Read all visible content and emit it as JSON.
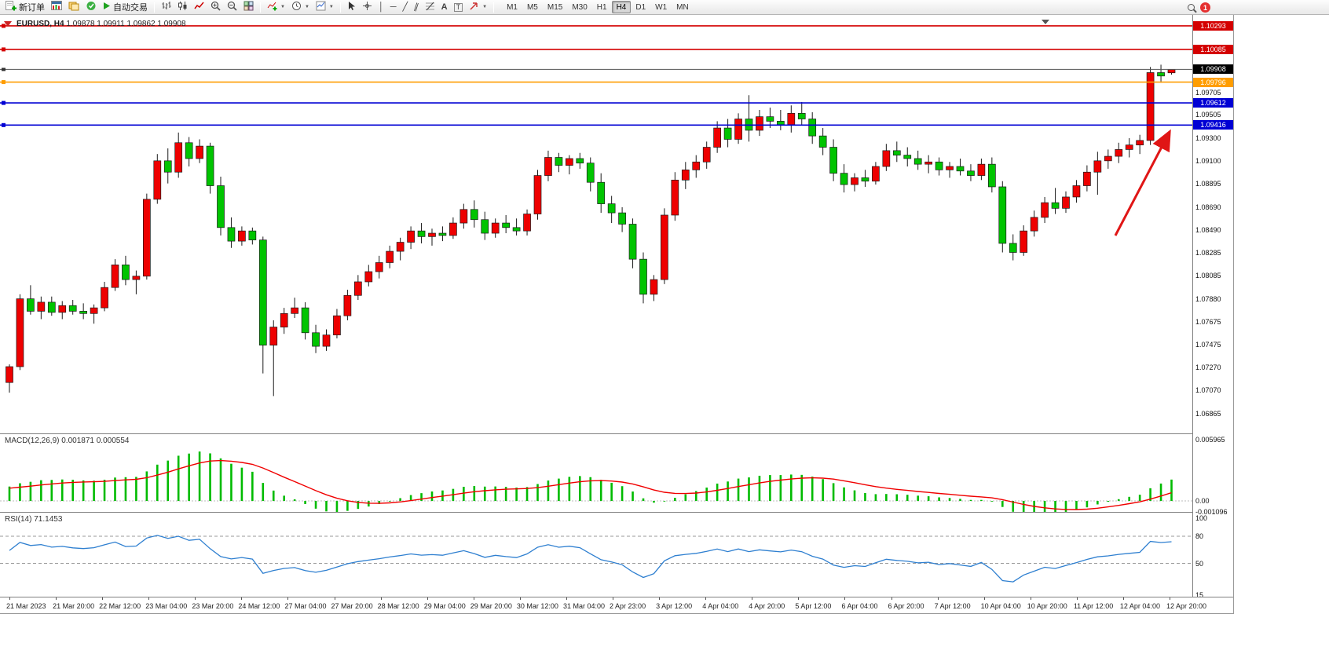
{
  "toolbar": {
    "new_order": "新订单",
    "autotrading": "自动交易",
    "timeframes": [
      "M1",
      "M5",
      "M15",
      "M30",
      "H1",
      "H4",
      "D1",
      "W1",
      "MN"
    ],
    "active_timeframe": "H4",
    "notification_count": "1",
    "glyphs": {
      "caret": "▼",
      "cursor": "↖",
      "vline": "│",
      "hline": "─",
      "trendline": "╱",
      "channel": "∥",
      "text_tool": "A",
      "label_tool": "T"
    },
    "icons": [
      "new-order",
      "new-chart",
      "profiles",
      "notifications",
      "autotrading-play",
      "bar-chart",
      "candlestick-chart",
      "line-chart",
      "zoom-in",
      "zoom-out",
      "tile-windows",
      "indicators",
      "periods",
      "templates",
      "cursor",
      "crosshair",
      "vertical-line",
      "horizontal-line",
      "trendline",
      "equidistant-channel",
      "fibonacci",
      "text",
      "text-label",
      "arrows",
      "search",
      "notification-badge"
    ]
  },
  "chart": {
    "title": "EURUSD, H4",
    "ohlc_text": "1.09878 1.09911 1.09862 1.09908"
  },
  "chart_data": {
    "type": "candlestick",
    "symbol": "EURUSD",
    "timeframe": "H4",
    "up_color": "#ee0000",
    "down_color": "#00c400",
    "y_range": {
      "top": 1.1039,
      "bottom": 1.0669
    },
    "y_axis_ticks": [
      "1.09705",
      "1.09505",
      "1.09300",
      "1.09100",
      "1.08895",
      "1.08690",
      "1.08490",
      "1.08285",
      "1.08085",
      "1.07880",
      "1.07675",
      "1.07475",
      "1.07270",
      "1.07070",
      "1.06865"
    ],
    "current_price": "1.09908",
    "levels": [
      {
        "price": "1.10293",
        "color": "#d40000"
      },
      {
        "price": "1.10085",
        "color": "#d40000"
      },
      {
        "price": "1.09796",
        "color": "#ff9d00"
      },
      {
        "price": "1.09612",
        "color": "#0000d4"
      },
      {
        "price": "1.09416",
        "color": "#0000d4"
      }
    ],
    "x_labels": [
      "21 Mar 2023",
      "21 Mar 20:00",
      "22 Mar 12:00",
      "23 Mar 04:00",
      "23 Mar 20:00",
      "24 Mar 12:00",
      "27 Mar 04:00",
      "27 Mar 20:00",
      "28 Mar 12:00",
      "29 Mar 04:00",
      "29 Mar 20:00",
      "30 Mar 12:00",
      "31 Mar 04:00",
      "2 Apr 23:00",
      "3 Apr 12:00",
      "4 Apr 04:00",
      "4 Apr 20:00",
      "5 Apr 12:00",
      "6 Apr 04:00",
      "6 Apr 20:00",
      "7 Apr 12:00",
      "10 Apr 04:00",
      "10 Apr 20:00",
      "11 Apr 12:00",
      "12 Apr 04:00",
      "12 Apr 20:00"
    ],
    "candles": [
      [
        1.0714,
        1.073,
        1.0705,
        1.0728
      ],
      [
        1.0728,
        1.0792,
        1.0725,
        1.0788
      ],
      [
        1.0788,
        1.08,
        1.0774,
        1.0777
      ],
      [
        1.0777,
        1.079,
        1.077,
        1.0785
      ],
      [
        1.0785,
        1.079,
        1.0773,
        1.0776
      ],
      [
        1.0776,
        1.0786,
        1.077,
        1.0782
      ],
      [
        1.0782,
        1.0787,
        1.0774,
        1.0777
      ],
      [
        1.0777,
        1.0784,
        1.077,
        1.0775
      ],
      [
        1.0775,
        1.0783,
        1.0766,
        1.078
      ],
      [
        1.078,
        1.0803,
        1.0777,
        1.0798
      ],
      [
        1.0798,
        1.0823,
        1.0795,
        1.0818
      ],
      [
        1.0818,
        1.0826,
        1.08,
        1.0805
      ],
      [
        1.0805,
        1.0813,
        1.0792,
        1.0808
      ],
      [
        1.0808,
        1.0881,
        1.0805,
        1.0876
      ],
      [
        1.0876,
        1.0916,
        1.0872,
        1.091
      ],
      [
        1.091,
        1.0921,
        1.089,
        1.09
      ],
      [
        1.09,
        1.0935,
        1.0895,
        1.0926
      ],
      [
        1.0926,
        1.0931,
        1.0905,
        1.0912
      ],
      [
        1.0912,
        1.0929,
        1.0908,
        1.0923
      ],
      [
        1.0923,
        1.0926,
        1.0881,
        1.0888
      ],
      [
        1.0888,
        1.0896,
        1.0844,
        1.0851
      ],
      [
        1.0851,
        1.086,
        1.0833,
        1.0839
      ],
      [
        1.0839,
        1.0852,
        1.0835,
        1.0848
      ],
      [
        1.0848,
        1.0851,
        1.0836,
        1.084
      ],
      [
        1.084,
        1.0843,
        1.0722,
        1.0747
      ],
      [
        1.0747,
        1.0769,
        1.0702,
        1.0763
      ],
      [
        1.0763,
        1.078,
        1.0757,
        1.0775
      ],
      [
        1.0775,
        1.0789,
        1.0771,
        1.078
      ],
      [
        1.078,
        1.0785,
        1.0752,
        1.0758
      ],
      [
        1.0758,
        1.0765,
        1.074,
        1.0746
      ],
      [
        1.0746,
        1.0761,
        1.0742,
        1.0756
      ],
      [
        1.0756,
        1.0779,
        1.0753,
        1.0773
      ],
      [
        1.0773,
        1.0796,
        1.0769,
        1.0791
      ],
      [
        1.0791,
        1.0809,
        1.0787,
        1.0803
      ],
      [
        1.0803,
        1.0818,
        1.0799,
        1.0812
      ],
      [
        1.0812,
        1.0826,
        1.0806,
        1.082
      ],
      [
        1.082,
        1.0835,
        1.0815,
        1.083
      ],
      [
        1.083,
        1.0842,
        1.0822,
        1.0838
      ],
      [
        1.0838,
        1.0852,
        1.0832,
        1.0848
      ],
      [
        1.0848,
        1.0855,
        1.0837,
        1.0843
      ],
      [
        1.0843,
        1.085,
        1.0835,
        1.0846
      ],
      [
        1.0846,
        1.0852,
        1.0839,
        1.0844
      ],
      [
        1.0844,
        1.086,
        1.0841,
        1.0855
      ],
      [
        1.0855,
        1.0872,
        1.085,
        1.0867
      ],
      [
        1.0867,
        1.0875,
        1.0851,
        1.0858
      ],
      [
        1.0858,
        1.0865,
        1.084,
        1.0846
      ],
      [
        1.0846,
        1.0859,
        1.0842,
        1.0855
      ],
      [
        1.0855,
        1.0862,
        1.0846,
        1.0851
      ],
      [
        1.0851,
        1.0859,
        1.0844,
        1.0848
      ],
      [
        1.0848,
        1.0867,
        1.0844,
        1.0863
      ],
      [
        1.0863,
        1.0902,
        1.0858,
        1.0897
      ],
      [
        1.0897,
        1.0919,
        1.0892,
        1.0913
      ],
      [
        1.0913,
        1.0917,
        1.09,
        1.0906
      ],
      [
        1.0906,
        1.0915,
        1.0898,
        1.0912
      ],
      [
        1.0912,
        1.0917,
        1.0903,
        1.0908
      ],
      [
        1.0908,
        1.0913,
        1.0883,
        1.0891
      ],
      [
        1.0891,
        1.0899,
        1.0864,
        1.0872
      ],
      [
        1.0872,
        1.0879,
        1.0855,
        1.0864
      ],
      [
        1.0864,
        1.0869,
        1.0847,
        1.0854
      ],
      [
        1.0854,
        1.0859,
        1.0815,
        1.0823
      ],
      [
        1.0823,
        1.0829,
        1.0784,
        1.0792
      ],
      [
        1.0792,
        1.0809,
        1.0786,
        1.0805
      ],
      [
        1.0805,
        1.0868,
        1.0801,
        1.0862
      ],
      [
        1.0862,
        1.09,
        1.0857,
        1.0893
      ],
      [
        1.0893,
        1.0909,
        1.0885,
        1.0902
      ],
      [
        1.0902,
        1.0915,
        1.0895,
        1.0909
      ],
      [
        1.0909,
        1.0927,
        1.0903,
        1.0922
      ],
      [
        1.0922,
        1.0945,
        1.0917,
        1.0939
      ],
      [
        1.0939,
        1.0947,
        1.0922,
        1.0929
      ],
      [
        1.0929,
        1.0952,
        1.0925,
        1.0947
      ],
      [
        1.0947,
        1.0968,
        1.0927,
        1.0937
      ],
      [
        1.0937,
        1.0955,
        1.0932,
        1.0949
      ],
      [
        1.0949,
        1.0957,
        1.0939,
        1.0945
      ],
      [
        1.0945,
        1.0955,
        1.0937,
        1.0942
      ],
      [
        1.0942,
        1.0959,
        1.0935,
        1.0952
      ],
      [
        1.0952,
        1.0962,
        1.0942,
        1.0947
      ],
      [
        1.0947,
        1.0953,
        1.0925,
        1.0932
      ],
      [
        1.0932,
        1.0939,
        1.0915,
        1.0922
      ],
      [
        1.0922,
        1.0929,
        1.0892,
        1.0899
      ],
      [
        1.0899,
        1.0907,
        1.0882,
        1.0889
      ],
      [
        1.0889,
        1.0899,
        1.0883,
        1.0895
      ],
      [
        1.0895,
        1.0902,
        1.0887,
        1.0892
      ],
      [
        1.0892,
        1.0909,
        1.0889,
        1.0905
      ],
      [
        1.0905,
        1.0925,
        1.0901,
        1.0919
      ],
      [
        1.0919,
        1.0927,
        1.0909,
        1.0915
      ],
      [
        1.0915,
        1.0922,
        1.0905,
        1.0912
      ],
      [
        1.0912,
        1.0919,
        1.0902,
        1.0907
      ],
      [
        1.0907,
        1.0915,
        1.0899,
        1.0909
      ],
      [
        1.0909,
        1.0913,
        1.0897,
        1.0902
      ],
      [
        1.0902,
        1.0909,
        1.0895,
        1.0905
      ],
      [
        1.0905,
        1.0912,
        1.0897,
        1.0901
      ],
      [
        1.0901,
        1.0907,
        1.0892,
        1.0897
      ],
      [
        1.0897,
        1.0912,
        1.0893,
        1.0907
      ],
      [
        1.0907,
        1.0913,
        1.0882,
        1.0887
      ],
      [
        1.0887,
        1.0892,
        1.0829,
        1.0837
      ],
      [
        1.0837,
        1.0845,
        1.0822,
        1.0829
      ],
      [
        1.0829,
        1.0853,
        1.0826,
        1.0848
      ],
      [
        1.0848,
        1.0866,
        1.0843,
        1.086
      ],
      [
        1.086,
        1.0878,
        1.0855,
        1.0873
      ],
      [
        1.0873,
        1.0886,
        1.0863,
        1.0868
      ],
      [
        1.0868,
        1.0883,
        1.0864,
        1.0878
      ],
      [
        1.0878,
        1.0893,
        1.0873,
        1.0888
      ],
      [
        1.0888,
        1.0906,
        1.0883,
        1.09
      ],
      [
        1.09,
        1.0918,
        1.088,
        1.091
      ],
      [
        1.091,
        1.092,
        1.0903,
        1.0914
      ],
      [
        1.0914,
        1.0926,
        1.0908,
        1.092
      ],
      [
        1.092,
        1.093,
        1.0913,
        1.0924
      ],
      [
        1.0924,
        1.0933,
        1.0916,
        1.0928
      ],
      [
        1.0928,
        1.0993,
        1.0924,
        1.0988
      ],
      [
        1.0988,
        1.0995,
        1.0979,
        1.0985
      ],
      [
        1.09878,
        1.09911,
        1.09862,
        1.09908
      ]
    ],
    "indicators": {
      "macd": {
        "label": "MACD(12,26,9)",
        "value_main": "0.001871",
        "value_signal": "0.000554",
        "axis_labels": [
          "0.005965",
          "0.00",
          "-0.001096"
        ],
        "fast": 12,
        "slow": 26,
        "signal_period": 9,
        "histogram_color": "#00bb00",
        "signal_color": "#f00000"
      },
      "rsi": {
        "label": "RSI(14)",
        "value": "71.1453",
        "axis_labels": [
          "100",
          "80",
          "50",
          "15"
        ],
        "period": 14,
        "levels": [
          80,
          50
        ],
        "line_color": "#2e7fd0"
      }
    },
    "annotations": [
      {
        "type": "arrow",
        "color": "#e01616",
        "from": [
          1420,
          281
        ],
        "to": [
          1488,
          151
        ]
      }
    ]
  }
}
